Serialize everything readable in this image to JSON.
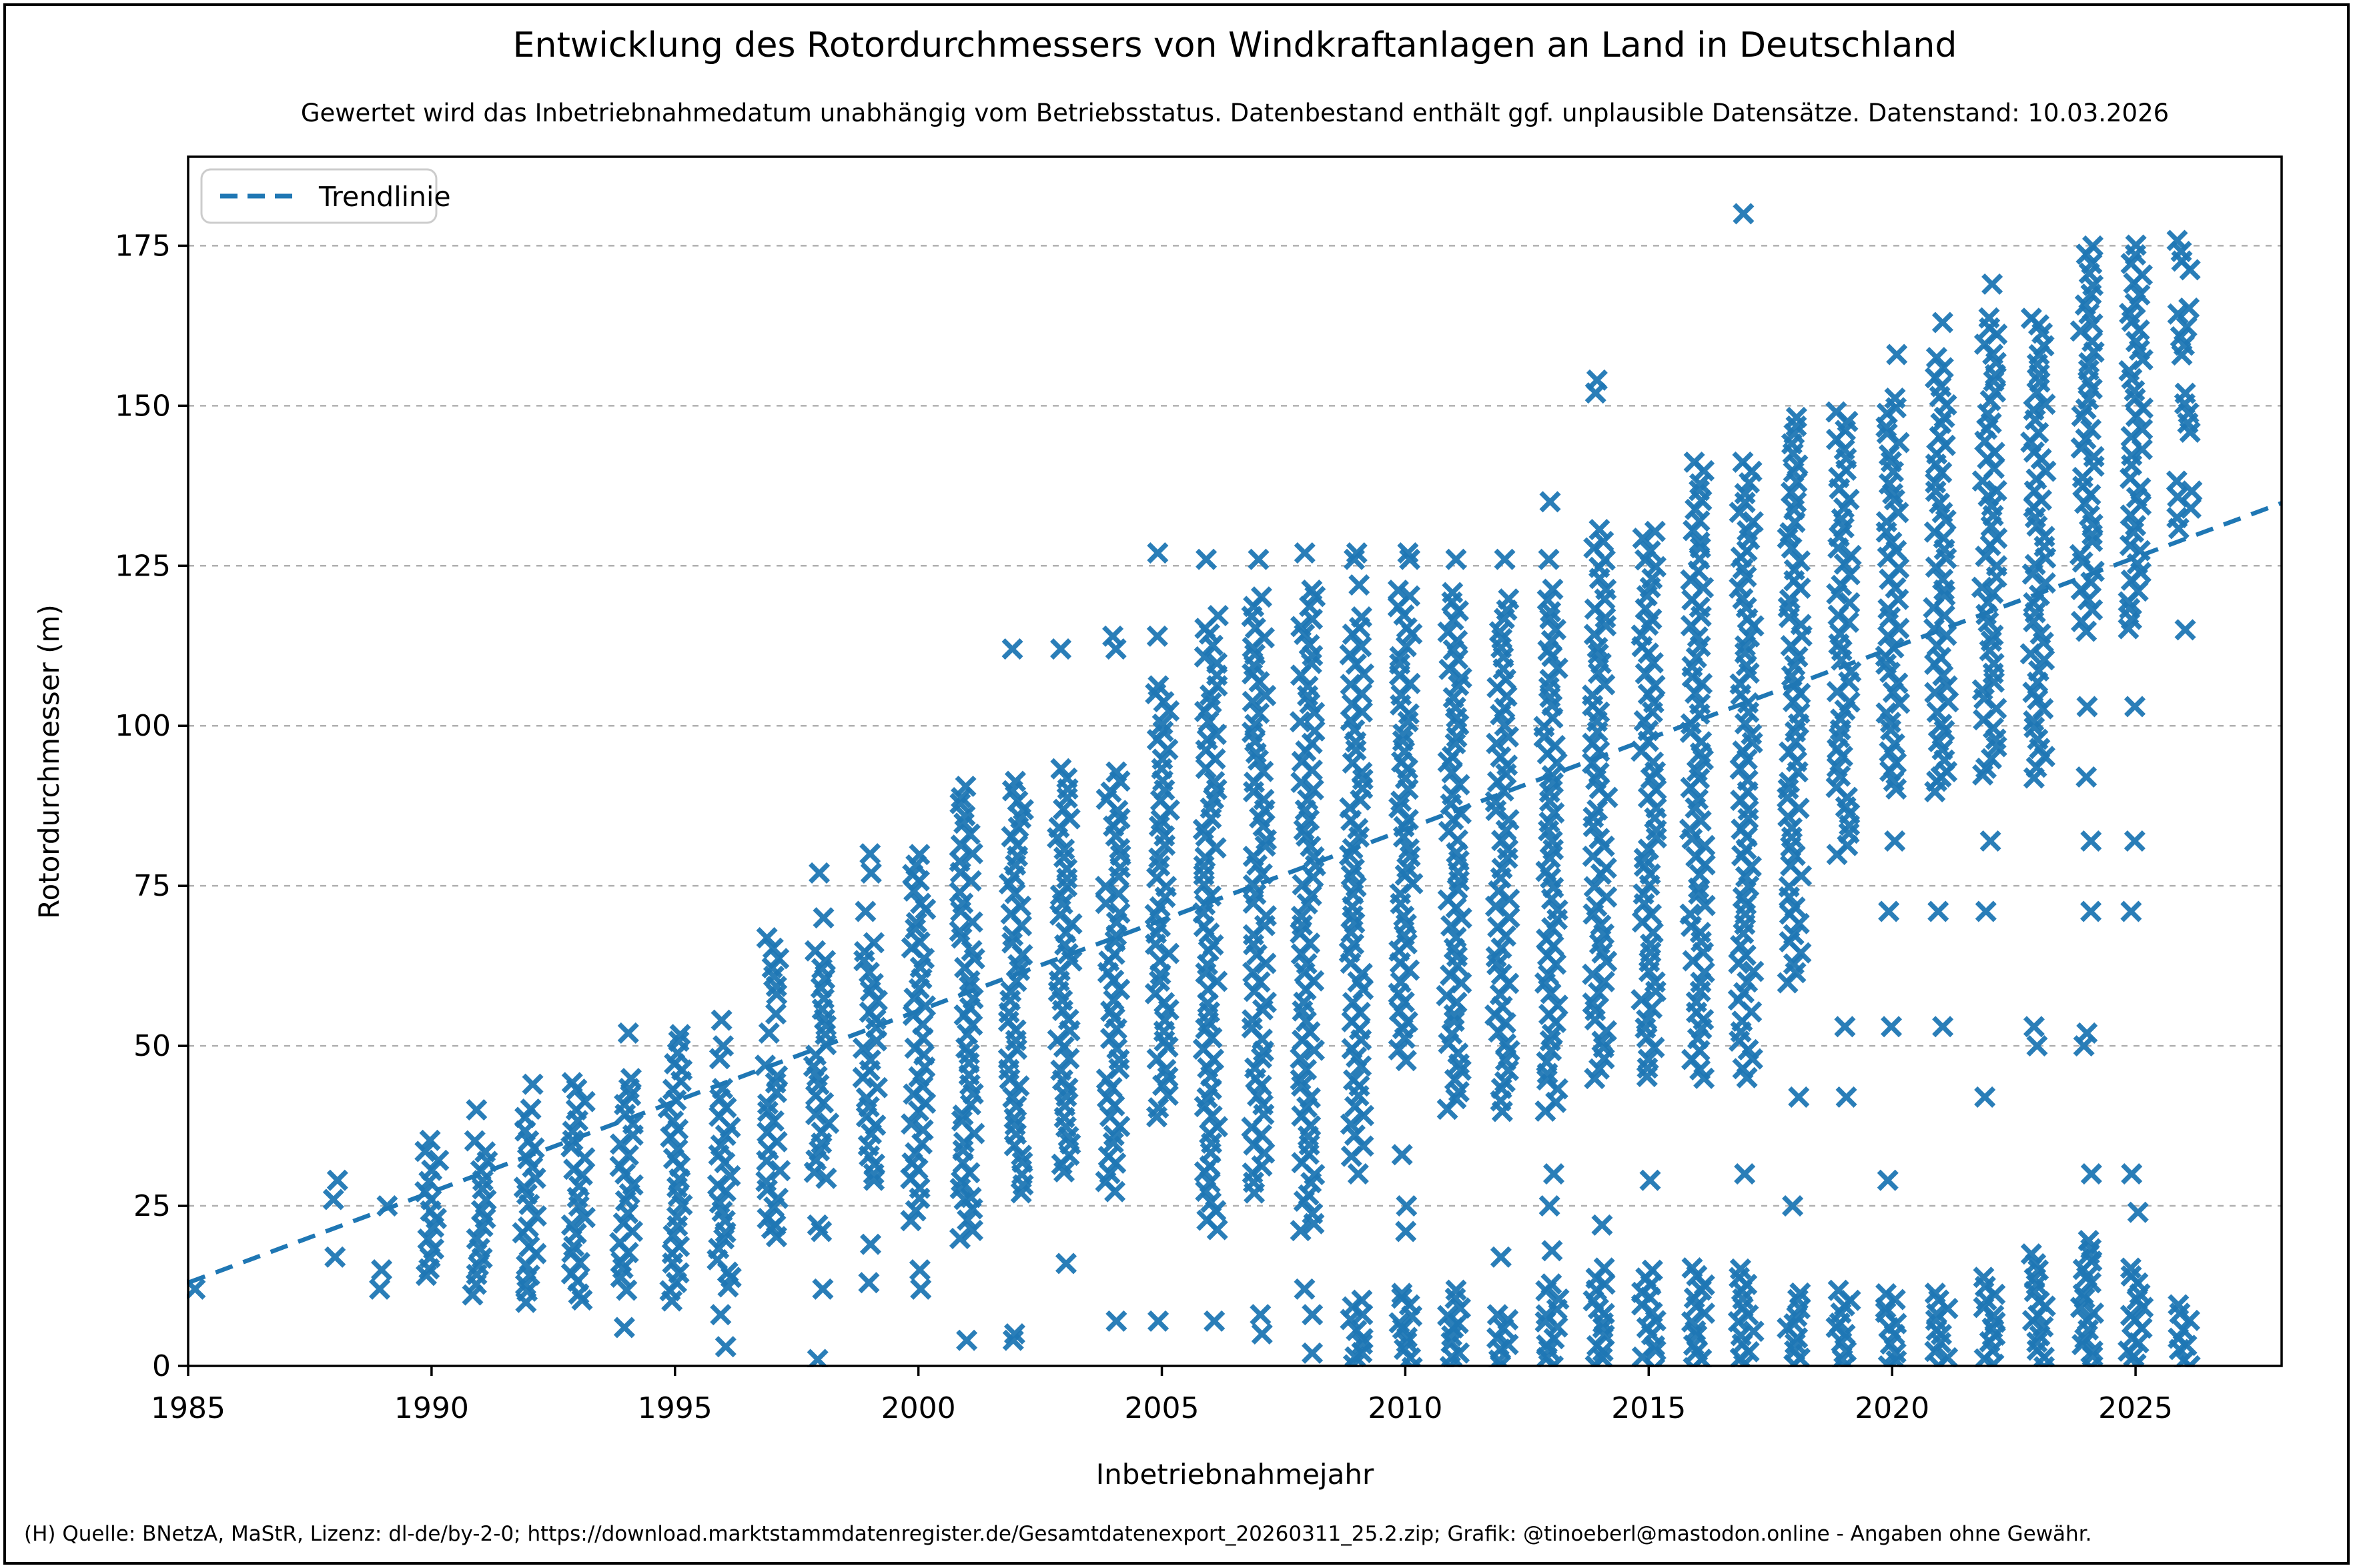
{
  "figure": {
    "title": "Entwicklung des Rotordurchmessers von Windkraftanlagen an Land in Deutschland",
    "subtitle": "Gewertet wird das Inbetriebnahmedatum unabhängig vom Betriebsstatus. Datenbestand enthält ggf. unplausible Datensätze. Datenstand: 10.03.2026",
    "footer": "(H) Quelle: BNetzA, MaStR, Lizenz: dl-de/by-2-0; https://download.marktstammdatenregister.de/Gesamtdatenexport_20260311_25.2.zip; Grafik: @tinoeberl@mastodon.online - Angaben ohne Gewähr."
  },
  "chart_data": {
    "type": "scatter",
    "title": "Entwicklung des Rotordurchmessers von Windkraftanlagen an Land in Deutschland",
    "subtitle": "Gewertet wird das Inbetriebnahmedatum unabhängig vom Betriebsstatus. Datenbestand enthält ggf. unplausible Datensätze. Datenstand: 10.03.2026",
    "xlabel": "Inbetriebnahmejahr",
    "ylabel": "Rotordurchmesser (m)",
    "xlim": [
      1985,
      2028.0
    ],
    "ylim": [
      0,
      188.9
    ],
    "xticks": [
      1985,
      1990,
      1995,
      2000,
      2005,
      2010,
      2015,
      2020,
      2025
    ],
    "yticks": [
      0,
      25,
      50,
      75,
      100,
      125,
      150,
      175
    ],
    "grid": "horizontal-dashed",
    "legend": {
      "label": "Trendlinie",
      "position": "upper-left"
    },
    "colors": {
      "marker": "#1f77b4",
      "trend": "#1f77b4",
      "grid": "#b0b0b0",
      "text": "#000000",
      "spine": "#000000"
    },
    "marker": "x",
    "trendline": {
      "x": [
        1985,
        2028.0
      ],
      "y": [
        13.0,
        134.8
      ]
    },
    "band_step": 1.5,
    "columns": [
      {
        "x": 1985.08,
        "bands": [],
        "pts": [
          12
        ]
      },
      {
        "x": 1988,
        "bands": [],
        "pts": [
          17,
          26,
          29
        ]
      },
      {
        "x": 1989,
        "bands": [],
        "pts": [
          12,
          15,
          25
        ]
      },
      {
        "x": 1990,
        "bands": [
          [
            14,
            35
          ]
        ],
        "pts": []
      },
      {
        "x": 1991,
        "bands": [
          [
            11,
            36
          ]
        ],
        "pts": [
          40
        ]
      },
      {
        "x": 1992,
        "bands": [
          [
            10,
            41
          ]
        ],
        "pts": [
          44
        ]
      },
      {
        "x": 1993,
        "bands": [
          [
            10,
            45
          ]
        ],
        "pts": []
      },
      {
        "x": 1994,
        "bands": [
          [
            12,
            46
          ]
        ],
        "pts": [
          6,
          52
        ]
      },
      {
        "x": 1995,
        "bands": [
          [
            10,
            52
          ]
        ],
        "pts": []
      },
      {
        "x": 1996,
        "bands": [
          [
            12,
            44
          ]
        ],
        "pts": [
          3,
          8,
          48,
          50,
          54
        ]
      },
      {
        "x": 1997,
        "bands": [
          [
            20,
            48
          ],
          [
            58,
            68
          ]
        ],
        "pts": [
          22,
          52,
          55
        ]
      },
      {
        "x": 1998,
        "bands": [
          [
            29,
            66
          ]
        ],
        "pts": [
          1,
          12,
          21,
          22,
          70,
          77
        ]
      },
      {
        "x": 1999,
        "bands": [
          [
            30,
            66
          ]
        ],
        "pts": [
          13,
          19,
          29,
          71,
          77,
          80
        ]
      },
      {
        "x": 2000,
        "bands": [
          [
            23,
            81
          ]
        ],
        "pts": [
          12,
          15
        ]
      },
      {
        "x": 2001,
        "bands": [
          [
            20,
            91
          ]
        ],
        "pts": [
          4,
          26
        ]
      },
      {
        "x": 2002,
        "bands": [
          [
            27,
            92
          ]
        ],
        "pts": [
          4,
          5,
          112
        ]
      },
      {
        "x": 2003,
        "bands": [
          [
            30,
            94
          ]
        ],
        "pts": [
          16,
          112
        ]
      },
      {
        "x": 2004,
        "bands": [
          [
            27,
            94
          ]
        ],
        "pts": [
          7,
          112,
          114
        ]
      },
      {
        "x": 2005,
        "bands": [
          [
            39,
            107
          ]
        ],
        "pts": [
          7,
          114,
          127
        ]
      },
      {
        "x": 2006,
        "bands": [
          [
            21,
            118
          ]
        ],
        "pts": [
          7,
          126
        ]
      },
      {
        "x": 2007,
        "bands": [
          [
            27,
            121
          ]
        ],
        "pts": [
          5,
          8,
          126
        ]
      },
      {
        "x": 2008,
        "bands": [
          [
            21,
            122
          ]
        ],
        "pts": [
          2,
          8,
          12,
          127
        ]
      },
      {
        "x": 2009,
        "bands": [
          [
            33,
            117
          ],
          [
            0,
            11
          ]
        ],
        "pts": [
          30,
          122,
          126,
          127
        ]
      },
      {
        "x": 2010,
        "bands": [
          [
            48,
            122
          ],
          [
            0,
            12
          ]
        ],
        "pts": [
          21,
          25,
          33,
          126,
          127
        ]
      },
      {
        "x": 2011,
        "bands": [
          [
            40,
            121
          ],
          [
            0,
            12
          ]
        ],
        "pts": [
          126
        ]
      },
      {
        "x": 2012,
        "bands": [
          [
            40,
            120
          ],
          [
            0,
            9
          ]
        ],
        "pts": [
          17,
          126
        ]
      },
      {
        "x": 2013,
        "bands": [
          [
            40,
            121
          ],
          [
            0,
            13
          ]
        ],
        "pts": [
          18,
          25,
          30,
          126,
          135
        ]
      },
      {
        "x": 2014,
        "bands": [
          [
            45,
            131
          ],
          [
            0,
            16
          ]
        ],
        "pts": [
          22,
          152,
          154
        ]
      },
      {
        "x": 2015,
        "bands": [
          [
            45,
            131
          ],
          [
            0,
            15
          ]
        ],
        "pts": [
          29
        ]
      },
      {
        "x": 2016,
        "bands": [
          [
            45,
            142
          ],
          [
            0,
            15
          ]
        ],
        "pts": []
      },
      {
        "x": 2017,
        "bands": [
          [
            45,
            142
          ],
          [
            0,
            15
          ]
        ],
        "pts": [
          30,
          180
        ]
      },
      {
        "x": 2018,
        "bands": [
          [
            60,
            149
          ],
          [
            0,
            12
          ]
        ],
        "pts": [
          25,
          42
        ]
      },
      {
        "x": 2019,
        "bands": [
          [
            80,
            150
          ],
          [
            0,
            12
          ]
        ],
        "pts": [
          42,
          53
        ]
      },
      {
        "x": 2020,
        "bands": [
          [
            90,
            152
          ],
          [
            0,
            12
          ]
        ],
        "pts": [
          29,
          53,
          71,
          82,
          158
        ]
      },
      {
        "x": 2021,
        "bands": [
          [
            90,
            158
          ],
          [
            0,
            12
          ]
        ],
        "pts": [
          53,
          71,
          92,
          163
        ]
      },
      {
        "x": 2022,
        "bands": [
          [
            92,
            164
          ],
          [
            0,
            14
          ]
        ],
        "pts": [
          42,
          71,
          82,
          169
        ]
      },
      {
        "x": 2023,
        "bands": [
          [
            92,
            164
          ],
          [
            0,
            18
          ]
        ],
        "pts": [
          50,
          53
        ]
      },
      {
        "x": 2024,
        "bands": [
          [
            115,
            176
          ],
          [
            0,
            20
          ]
        ],
        "pts": [
          30,
          50,
          52,
          71,
          82,
          92,
          103
        ]
      },
      {
        "x": 2025,
        "bands": [
          [
            115,
            176
          ],
          [
            0,
            16
          ]
        ],
        "pts": [
          24,
          30,
          71,
          82,
          103
        ]
      },
      {
        "x": 2026,
        "bands": [
          [
            131,
            139
          ],
          [
            146,
            152
          ],
          [
            158,
            166
          ],
          [
            171,
            176
          ],
          [
            0,
            10
          ]
        ],
        "pts": [
          115
        ]
      }
    ]
  }
}
